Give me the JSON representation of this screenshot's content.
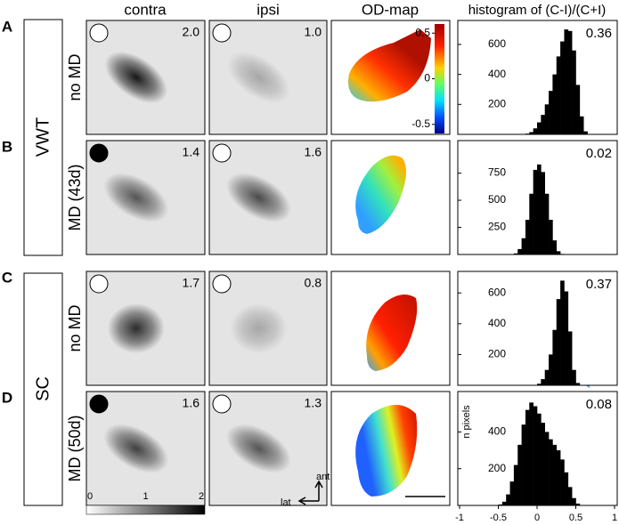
{
  "column_headers": [
    "contra",
    "ipsi",
    "OD-map",
    "histogram of (C-I)/(C+I)"
  ],
  "groups": [
    {
      "label": "VWT"
    },
    {
      "label": "SC"
    }
  ],
  "rows": [
    {
      "letter": "A",
      "label": "no MD",
      "contra_value": "2.0",
      "ipsi_value": "1.0",
      "histogram": {
        "type": "histogram",
        "value_label": "0.36",
        "value_color": "#000000",
        "bar_color": "#000000",
        "bins": [
          -0.15,
          -0.1,
          -0.05,
          0,
          0.05,
          0.1,
          0.15,
          0.2,
          0.25,
          0.3,
          0.35,
          0.4,
          0.45,
          0.5,
          0.55,
          0.6,
          0.65
        ],
        "counts": [
          5,
          15,
          40,
          80,
          130,
          200,
          290,
          400,
          520,
          620,
          700,
          690,
          560,
          330,
          120,
          20
        ],
        "ylim": [
          0,
          760
        ],
        "yticks": [
          200,
          400,
          600
        ]
      }
    },
    {
      "letter": "B",
      "label": "MD (43d)",
      "contra_value": "1.4",
      "ipsi_value": "1.6",
      "histogram": {
        "type": "histogram",
        "value_label": "0.02",
        "value_color": "#29b6e8",
        "bar_color": "#000000",
        "bins": [
          -0.3,
          -0.25,
          -0.2,
          -0.15,
          -0.1,
          -0.05,
          0,
          0.05,
          0.1,
          0.15,
          0.2,
          0.25,
          0.3,
          0.35
        ],
        "counts": [
          10,
          50,
          150,
          320,
          560,
          780,
          830,
          760,
          560,
          320,
          130,
          30,
          5
        ],
        "ylim": [
          0,
          1050
        ],
        "yticks": [
          250,
          500,
          750
        ]
      }
    },
    {
      "letter": "C",
      "label": "no MD",
      "contra_value": "1.7",
      "ipsi_value": "0.8",
      "histogram": {
        "type": "histogram",
        "value_label": "0.37",
        "value_color": "#000000",
        "bar_color": "#000000",
        "bins": [
          0,
          0.05,
          0.1,
          0.15,
          0.2,
          0.25,
          0.3,
          0.35,
          0.4,
          0.45,
          0.5,
          0.55
        ],
        "counts": [
          10,
          40,
          100,
          200,
          360,
          560,
          680,
          610,
          350,
          100,
          15
        ],
        "ylim": [
          0,
          740
        ],
        "yticks": [
          200,
          400,
          600
        ]
      }
    },
    {
      "letter": "D",
      "label": "MD (50d)",
      "contra_value": "1.6",
      "ipsi_value": "1.3",
      "histogram": {
        "type": "histogram",
        "value_label": "0.08",
        "value_color": "#29b6e8",
        "bar_color": "#000000",
        "bins": [
          -0.5,
          -0.45,
          -0.4,
          -0.35,
          -0.3,
          -0.25,
          -0.2,
          -0.15,
          -0.1,
          -0.05,
          0,
          0.05,
          0.1,
          0.15,
          0.2,
          0.25,
          0.3,
          0.35,
          0.4,
          0.45,
          0.5,
          0.55,
          0.6
        ],
        "counts": [
          5,
          20,
          60,
          130,
          220,
          330,
          440,
          520,
          560,
          540,
          500,
          450,
          400,
          360,
          330,
          300,
          250,
          180,
          100,
          40,
          10,
          2
        ],
        "ylim": [
          0,
          620
        ],
        "yticks": [
          200,
          400
        ]
      }
    }
  ],
  "od_colorbar": {
    "lim": [
      -0.6,
      0.6
    ],
    "ticks": [
      0.5,
      0,
      -0.5
    ]
  },
  "intensity_scale": {
    "lim": [
      0,
      2
    ],
    "ticks": [
      0,
      1,
      2
    ]
  },
  "orientation": {
    "anterior": "ant",
    "lateral": "lat"
  },
  "histogram_ylabel": "n pixels",
  "histogram_xlim": [
    -1,
    1
  ],
  "histogram_xticks": [
    -1,
    -0.5,
    0,
    0.5,
    1
  ]
}
